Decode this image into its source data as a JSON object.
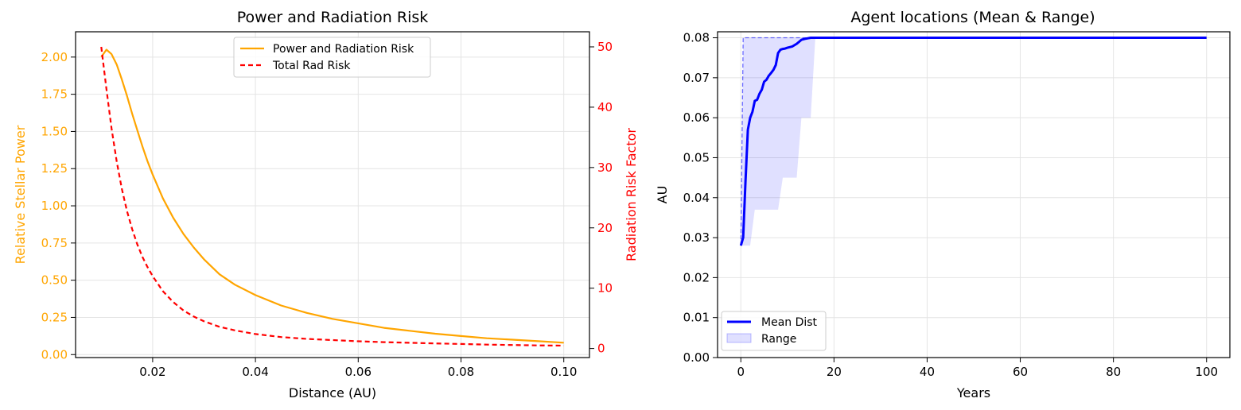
{
  "chart_data": [
    {
      "type": "line",
      "title": "Power and Radiation Risk",
      "xlabel": "Distance (AU)",
      "ylabel": "Relative Stellar Power",
      "ylabel_right": "Radiation Risk Factor",
      "xlim": [
        0.005,
        0.105
      ],
      "ylim": [
        -0.02,
        2.17
      ],
      "ylim_right": [
        -1.5,
        52.5
      ],
      "xticks": [
        0.02,
        0.04,
        0.06,
        0.08,
        0.1
      ],
      "xtick_labels": [
        "0.02",
        "0.04",
        "0.06",
        "0.08",
        "0.10"
      ],
      "yticks": [
        0.0,
        0.25,
        0.5,
        0.75,
        1.0,
        1.25,
        1.5,
        1.75,
        2.0
      ],
      "ytick_labels": [
        "0.00",
        "0.25",
        "0.50",
        "0.75",
        "1.00",
        "1.25",
        "1.50",
        "1.75",
        "2.00"
      ],
      "yticks_right": [
        0,
        10,
        20,
        30,
        40,
        50
      ],
      "ytick_labels_right": [
        "0",
        "10",
        "20",
        "30",
        "40",
        "50"
      ],
      "grid": true,
      "legend_position": "upper-center",
      "left_axis_color": "#FFA500",
      "right_axis_color": "#FF0000",
      "series": [
        {
          "name": "Power and Radiation Risk",
          "axis": "left",
          "style": "solid",
          "color": "#FFA500",
          "x": [
            0.01,
            0.011,
            0.012,
            0.013,
            0.014,
            0.015,
            0.016,
            0.017,
            0.018,
            0.019,
            0.02,
            0.022,
            0.024,
            0.026,
            0.028,
            0.03,
            0.033,
            0.036,
            0.04,
            0.045,
            0.05,
            0.055,
            0.06,
            0.065,
            0.07,
            0.075,
            0.08,
            0.085,
            0.09,
            0.095,
            0.1
          ],
          "y": [
            2.0,
            2.05,
            2.02,
            1.95,
            1.85,
            1.74,
            1.62,
            1.51,
            1.4,
            1.3,
            1.21,
            1.05,
            0.92,
            0.81,
            0.72,
            0.64,
            0.54,
            0.47,
            0.4,
            0.33,
            0.28,
            0.24,
            0.21,
            0.18,
            0.16,
            0.14,
            0.125,
            0.11,
            0.1,
            0.09,
            0.08
          ]
        },
        {
          "name": "Total Rad Risk",
          "axis": "right",
          "style": "dashed",
          "color": "#FF0000",
          "x": [
            0.01,
            0.011,
            0.012,
            0.013,
            0.014,
            0.015,
            0.016,
            0.017,
            0.018,
            0.019,
            0.02,
            0.022,
            0.024,
            0.026,
            0.028,
            0.03,
            0.033,
            0.036,
            0.04,
            0.045,
            0.05,
            0.055,
            0.06,
            0.065,
            0.07,
            0.075,
            0.08,
            0.085,
            0.09,
            0.095,
            0.1
          ],
          "y": [
            50.0,
            43.0,
            36.5,
            31.0,
            26.5,
            22.8,
            19.8,
            17.3,
            15.2,
            13.5,
            12.0,
            9.5,
            7.7,
            6.3,
            5.3,
            4.5,
            3.6,
            3.0,
            2.4,
            1.9,
            1.6,
            1.4,
            1.2,
            1.05,
            0.95,
            0.85,
            0.75,
            0.65,
            0.58,
            0.52,
            0.48
          ]
        }
      ]
    },
    {
      "type": "line",
      "title": "Agent locations (Mean & Range)",
      "xlabel": "Years",
      "ylabel": "AU",
      "xlim": [
        -5,
        105
      ],
      "ylim": [
        0.0,
        0.0815
      ],
      "xticks": [
        0,
        20,
        40,
        60,
        80,
        100
      ],
      "xtick_labels": [
        "0",
        "20",
        "40",
        "60",
        "80",
        "100"
      ],
      "yticks": [
        0.0,
        0.01,
        0.02,
        0.03,
        0.04,
        0.05,
        0.06,
        0.07,
        0.08
      ],
      "ytick_labels": [
        "0.00",
        "0.01",
        "0.02",
        "0.03",
        "0.04",
        "0.05",
        "0.06",
        "0.07",
        "0.08"
      ],
      "grid": true,
      "legend_position": "lower-left",
      "series": [
        {
          "name": "Mean Dist",
          "style": "solid",
          "color": "#0000FF",
          "x": [
            0,
            0.5,
            1,
            1.5,
            2,
            2.5,
            3,
            3.5,
            4,
            4.5,
            5,
            5.5,
            6,
            6.5,
            7,
            7.5,
            8,
            8.5,
            9,
            9.5,
            10,
            11,
            12,
            12.5,
            13,
            14,
            15,
            16,
            17,
            18,
            20,
            30,
            50,
            100
          ],
          "y": [
            0.028,
            0.03,
            0.044,
            0.057,
            0.06,
            0.0615,
            0.0642,
            0.0645,
            0.066,
            0.067,
            0.069,
            0.0695,
            0.0705,
            0.0712,
            0.072,
            0.0732,
            0.0762,
            0.077,
            0.0772,
            0.0773,
            0.0775,
            0.0778,
            0.0785,
            0.079,
            0.0795,
            0.0798,
            0.08,
            0.08,
            0.08,
            0.08,
            0.08,
            0.08,
            0.08,
            0.08
          ]
        },
        {
          "name": "Range",
          "style": "band",
          "color": "#0000FF",
          "x": [
            0,
            0.5,
            1,
            2,
            3,
            4,
            5,
            6,
            7,
            8,
            9,
            10,
            11,
            12,
            13,
            14,
            15,
            16,
            17,
            18,
            20,
            100
          ],
          "lower": [
            0.028,
            0.028,
            0.028,
            0.028,
            0.037,
            0.037,
            0.037,
            0.037,
            0.037,
            0.037,
            0.045,
            0.045,
            0.045,
            0.045,
            0.06,
            0.06,
            0.06,
            0.08,
            0.08,
            0.08,
            0.08,
            0.08
          ],
          "upper": [
            0.028,
            0.08,
            0.08,
            0.08,
            0.08,
            0.08,
            0.08,
            0.08,
            0.08,
            0.08,
            0.08,
            0.08,
            0.08,
            0.08,
            0.08,
            0.08,
            0.08,
            0.08,
            0.08,
            0.08,
            0.08,
            0.08
          ]
        }
      ]
    }
  ]
}
